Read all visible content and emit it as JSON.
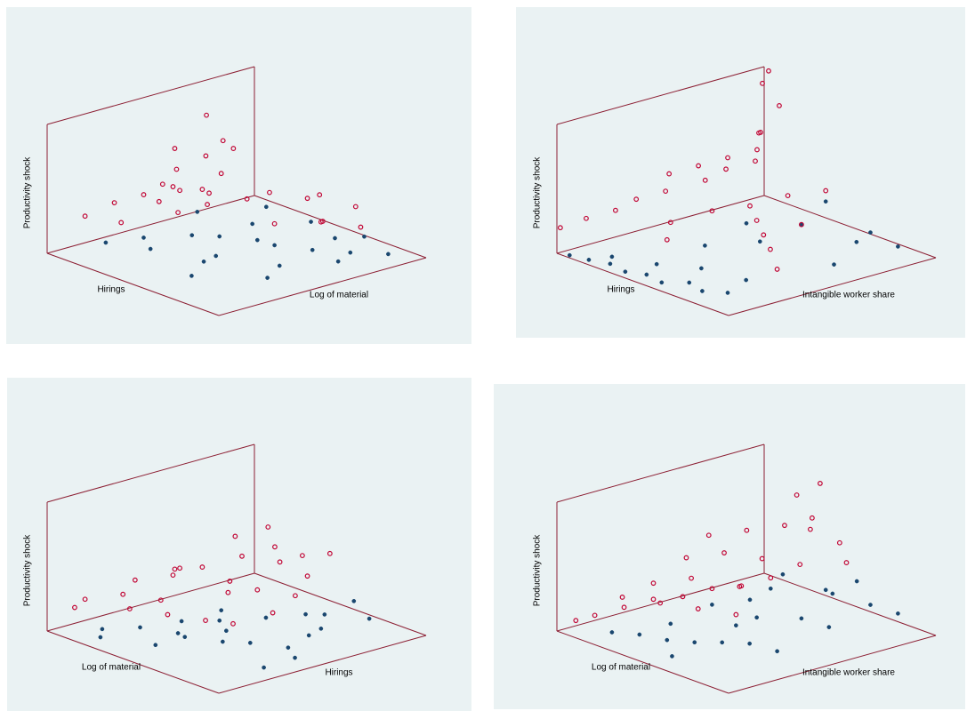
{
  "chart_data": [
    {
      "type": "scatter3d",
      "x_label": "Hirings",
      "y_label": "Log of material",
      "z_label": "Productivity shock",
      "xlim": [
        0,
        1
      ],
      "ylim": [
        0,
        1
      ],
      "zlim": [
        0,
        1.2
      ],
      "series": [
        {
          "color": "#1a476f",
          "marker": "filled",
          "x": [
            0.1,
            0.2,
            0.3,
            0.4,
            0.5,
            0.6,
            0.7,
            0.8,
            0.9,
            0.15,
            0.35,
            0.55,
            0.75,
            0.25,
            0.45,
            0.65,
            0.85,
            0.3,
            0.5,
            0.7,
            0.6,
            0.8
          ],
          "y": [
            0.2,
            0.3,
            0.25,
            0.5,
            0.4,
            0.6,
            0.7,
            0.8,
            0.9,
            0.6,
            0.7,
            0.3,
            0.5,
            0.85,
            0.9,
            0.85,
            0.7,
            0.45,
            0.6,
            0.95,
            0.2,
            0.4
          ],
          "z": [
            0.05,
            0.1,
            0.08,
            0.12,
            0.05,
            0.1,
            0.06,
            0.04,
            0.03,
            0.15,
            0.1,
            0.08,
            0.05,
            0.12,
            0.07,
            0.06,
            0.04,
            0.1,
            0.09,
            0.05,
            0.03,
            0.02
          ]
        },
        {
          "color": "#c10534",
          "marker": "hollow",
          "x": [
            0.1,
            0.15,
            0.2,
            0.25,
            0.3,
            0.35,
            0.4,
            0.2,
            0.3,
            0.45,
            0.5,
            0.55,
            0.25,
            0.35,
            0.6,
            0.7,
            0.8,
            0.15,
            0.4,
            0.5,
            0.3,
            0.2,
            0.65,
            0.75,
            0.45,
            0.35,
            0.3,
            0.25
          ],
          "y": [
            0.1,
            0.2,
            0.3,
            0.4,
            0.5,
            0.35,
            0.45,
            0.6,
            0.65,
            0.7,
            0.55,
            0.8,
            0.15,
            0.25,
            0.6,
            0.75,
            0.85,
            0.5,
            0.3,
            0.9,
            0.52,
            0.45,
            0.95,
            0.7,
            0.4,
            0.55,
            0.6,
            0.35
          ],
          "z": [
            0.35,
            0.45,
            0.5,
            0.55,
            0.5,
            0.6,
            0.55,
            0.7,
            0.8,
            0.45,
            0.5,
            0.4,
            0.35,
            0.55,
            0.3,
            0.3,
            0.25,
            0.6,
            0.45,
            0.35,
            1.18,
            0.85,
            0.3,
            0.35,
            0.5,
            0.65,
            0.9,
            0.6
          ]
        }
      ]
    },
    {
      "type": "scatter3d",
      "x_label": "Hirings",
      "y_label": "Intangible worker share",
      "z_label": "Productivity shock",
      "xlim": [
        0,
        1
      ],
      "ylim": [
        0,
        1
      ],
      "zlim": [
        0,
        1.2
      ],
      "series": [
        {
          "color": "#1a476f",
          "marker": "filled",
          "x": [
            0.05,
            0.15,
            0.25,
            0.35,
            0.45,
            0.55,
            0.65,
            0.75,
            0.85,
            0.2,
            0.4,
            0.6,
            0.8,
            0.5,
            0.7,
            0.9,
            0.6,
            0.8,
            0.7,
            0.9,
            0.95,
            0.5
          ],
          "y": [
            0.02,
            0.03,
            0.05,
            0.04,
            0.06,
            0.05,
            0.1,
            0.08,
            0.12,
            0.1,
            0.15,
            0.2,
            0.25,
            0.5,
            0.6,
            0.7,
            0.8,
            0.85,
            0.4,
            0.9,
            0.55,
            0.3
          ],
          "z": [
            0,
            0.01,
            0.02,
            0.01,
            0.03,
            0.02,
            0.05,
            0.04,
            0.06,
            0.03,
            0.05,
            0.1,
            0.08,
            0.3,
            0.35,
            0.25,
            0.4,
            0.2,
            0.3,
            0.1,
            0.15,
            0.2
          ]
        },
        {
          "color": "#c10534",
          "marker": "hollow",
          "x": [
            0.02,
            0.05,
            0.1,
            0.1,
            0.15,
            0.05,
            0.1,
            0.15,
            0.2,
            0.1,
            0.05,
            0.3,
            0.4,
            0.5,
            0.6,
            0.7,
            0.8,
            0.5,
            0.6,
            0.3,
            0.2,
            0.15,
            0.1,
            0.7,
            0.4,
            0.25,
            0.05,
            0.2
          ],
          "y": [
            0.0,
            0.1,
            0.2,
            0.3,
            0.4,
            0.5,
            0.6,
            0.7,
            0.8,
            0.9,
            0.95,
            0.5,
            0.6,
            0.55,
            0.5,
            0.45,
            0.4,
            0.7,
            0.8,
            0.3,
            0.55,
            0.85,
            0.99,
            0.6,
            0.2,
            0.75,
            0.98,
            0.65
          ],
          "z": [
            0.25,
            0.3,
            0.35,
            0.4,
            0.45,
            0.5,
            0.55,
            0.6,
            0.65,
            0.7,
            1.1,
            0.3,
            0.35,
            0.3,
            0.25,
            0.2,
            0.1,
            0.45,
            0.5,
            0.3,
            0.5,
            0.75,
            0.9,
            0.35,
            0.25,
            0.6,
            1.2,
            0.55
          ]
        }
      ]
    },
    {
      "type": "scatter3d",
      "x_label": "Log of material",
      "y_label": "Hirings",
      "z_label": "Productivity shock",
      "xlim": [
        0,
        1
      ],
      "ylim": [
        0,
        1
      ],
      "zlim": [
        0,
        1.2
      ],
      "series": [
        {
          "color": "#1a476f",
          "marker": "filled",
          "x": [
            0.2,
            0.3,
            0.4,
            0.5,
            0.6,
            0.7,
            0.8,
            0.9,
            0.35,
            0.55,
            0.75,
            0.45,
            0.65,
            0.85,
            0.25,
            0.5,
            0.7,
            0.6,
            0.3,
            0.4,
            0.8,
            0.9
          ],
          "y": [
            0.1,
            0.2,
            0.3,
            0.25,
            0.35,
            0.4,
            0.5,
            0.45,
            0.55,
            0.6,
            0.7,
            0.15,
            0.8,
            0.85,
            0.05,
            0.45,
            0.9,
            0.75,
            0.4,
            0.5,
            0.6,
            0.3
          ],
          "z": [
            0.08,
            0.1,
            0.05,
            0.1,
            0.06,
            0.08,
            0.04,
            0.03,
            0.1,
            0.12,
            0.08,
            0.05,
            0.1,
            0.15,
            0.06,
            0.05,
            0.2,
            0.1,
            0.05,
            0.06,
            0.1,
            0.02
          ]
        },
        {
          "color": "#c10534",
          "marker": "hollow",
          "x": [
            0.1,
            0.2,
            0.3,
            0.4,
            0.5,
            0.6,
            0.2,
            0.3,
            0.4,
            0.5,
            0.35,
            0.25,
            0.45,
            0.55,
            0.15,
            0.3,
            0.2,
            0.4,
            0.6,
            0.5,
            0.35,
            0.25,
            0.45,
            0.1,
            0.3,
            0.65
          ],
          "y": [
            0.1,
            0.2,
            0.3,
            0.25,
            0.35,
            0.4,
            0.45,
            0.5,
            0.55,
            0.6,
            0.65,
            0.7,
            0.75,
            0.8,
            0.3,
            0.85,
            0.9,
            0.9,
            0.7,
            0.95,
            0.35,
            0.4,
            0.5,
            0.05,
            0.15,
            0.55
          ],
          "z": [
            0.3,
            0.35,
            0.3,
            0.25,
            0.2,
            0.2,
            0.45,
            0.5,
            0.4,
            0.35,
            0.55,
            0.65,
            0.5,
            0.4,
            0.4,
            0.5,
            0.6,
            0.45,
            0.3,
            0.5,
            0.6,
            0.45,
            0.35,
            0.25,
            0.3,
            0.25
          ]
        }
      ]
    },
    {
      "type": "scatter3d",
      "x_label": "Log of material",
      "y_label": "Intangible worker share",
      "z_label": "Productivity shock",
      "xlim": [
        0,
        1
      ],
      "ylim": [
        0,
        1
      ],
      "zlim": [
        0,
        1.2
      ],
      "series": [
        {
          "color": "#1a476f",
          "marker": "filled",
          "x": [
            0.2,
            0.3,
            0.4,
            0.5,
            0.6,
            0.7,
            0.8,
            0.3,
            0.5,
            0.7,
            0.4,
            0.6,
            0.8,
            0.9,
            0.5,
            0.3,
            0.7,
            0.6,
            0.4,
            0.8,
            0.55,
            0.35
          ],
          "y": [
            0.1,
            0.15,
            0.2,
            0.25,
            0.3,
            0.35,
            0.4,
            0.5,
            0.55,
            0.6,
            0.7,
            0.8,
            0.85,
            0.9,
            0.45,
            0.3,
            0.75,
            0.95,
            0.6,
            0.65,
            0.1,
            0.8
          ],
          "z": [
            0.05,
            0.06,
            0.04,
            0.05,
            0.08,
            0.1,
            0.06,
            0.15,
            0.12,
            0.2,
            0.25,
            0.3,
            0.25,
            0.2,
            0.1,
            0.08,
            0.35,
            0.3,
            0.2,
            0.15,
            0.03,
            0.3
          ]
        },
        {
          "color": "#c10534",
          "marker": "hollow",
          "x": [
            0.05,
            0.1,
            0.15,
            0.2,
            0.25,
            0.3,
            0.35,
            0.4,
            0.2,
            0.3,
            0.4,
            0.5,
            0.15,
            0.25,
            0.35,
            0.45,
            0.1,
            0.2,
            0.3,
            0.4,
            0.5,
            0.6,
            0.25,
            0.35,
            0.45,
            0.3,
            0.2,
            0.4
          ],
          "y": [
            0.05,
            0.1,
            0.2,
            0.3,
            0.4,
            0.5,
            0.6,
            0.7,
            0.15,
            0.25,
            0.35,
            0.45,
            0.5,
            0.6,
            0.7,
            0.8,
            0.65,
            0.75,
            0.85,
            0.9,
            0.95,
            0.9,
            0.95,
            0.98,
            0.85,
            0.4,
            0.3,
            0.55
          ],
          "z": [
            0.1,
            0.15,
            0.2,
            0.25,
            0.25,
            0.3,
            0.3,
            0.35,
            0.35,
            0.3,
            0.25,
            0.2,
            0.5,
            0.55,
            0.5,
            0.45,
            0.6,
            0.65,
            0.7,
            0.8,
            0.6,
            0.5,
            0.9,
            1.05,
            0.75,
            0.45,
            0.4,
            0.35
          ]
        }
      ]
    }
  ]
}
